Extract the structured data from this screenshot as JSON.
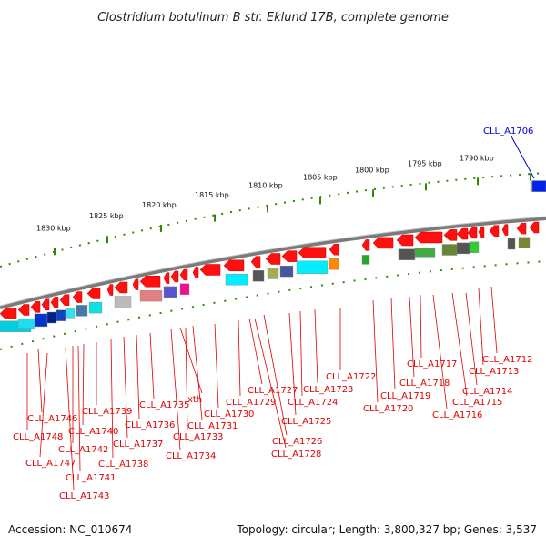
{
  "title": "Clostridium botulinum B str. Eklund 17B, complete genome",
  "footer": {
    "accession": "Accession: NC_010674",
    "summary": "Topology: circular; Length: 3,800,327 bp; Genes: 3,537"
  },
  "colors": {
    "gene_forward": "#ff0000",
    "backbone": "#7a7a7a",
    "tick": "#2e8b00",
    "label_line": "#e00000",
    "highlight_label": "#0000dd"
  },
  "scale_labels": [
    "1790 kbp",
    "1795 kbp",
    "1800 kbp",
    "1805 kbp",
    "1810 kbp",
    "1815 kbp",
    "1820 kbp",
    "1825 kbp",
    "1830 kbp"
  ],
  "highlight_gene": "CLL_A1706",
  "gene_labels": [
    "CLL_A1712",
    "CLL_A1713",
    "CLL_A1714",
    "CLL_A1715",
    "CLL_A1716",
    "CLL_A1717",
    "CLL_A1718",
    "CLL_A1719",
    "CLL_A1720",
    "CLL_A1722",
    "CLL_A1723",
    "CLL_A1724",
    "CLL_A1725",
    "CLL_A1726",
    "CLL_A1727",
    "CLL_A1728",
    "CLL_A1729",
    "CLL_A1730",
    "CLL_A1731",
    "CLL_A1733",
    "xth",
    "CLL_A1734",
    "CLL_A1735",
    "CLL_A1736",
    "CLL_A1737",
    "CLL_A1738",
    "CLL_A1739",
    "CLL_A1740",
    "CLL_A1741",
    "CLL_A1742",
    "CLL_A1743",
    "CLL_A1746",
    "CLL_A1747",
    "CLL_A1748"
  ]
}
